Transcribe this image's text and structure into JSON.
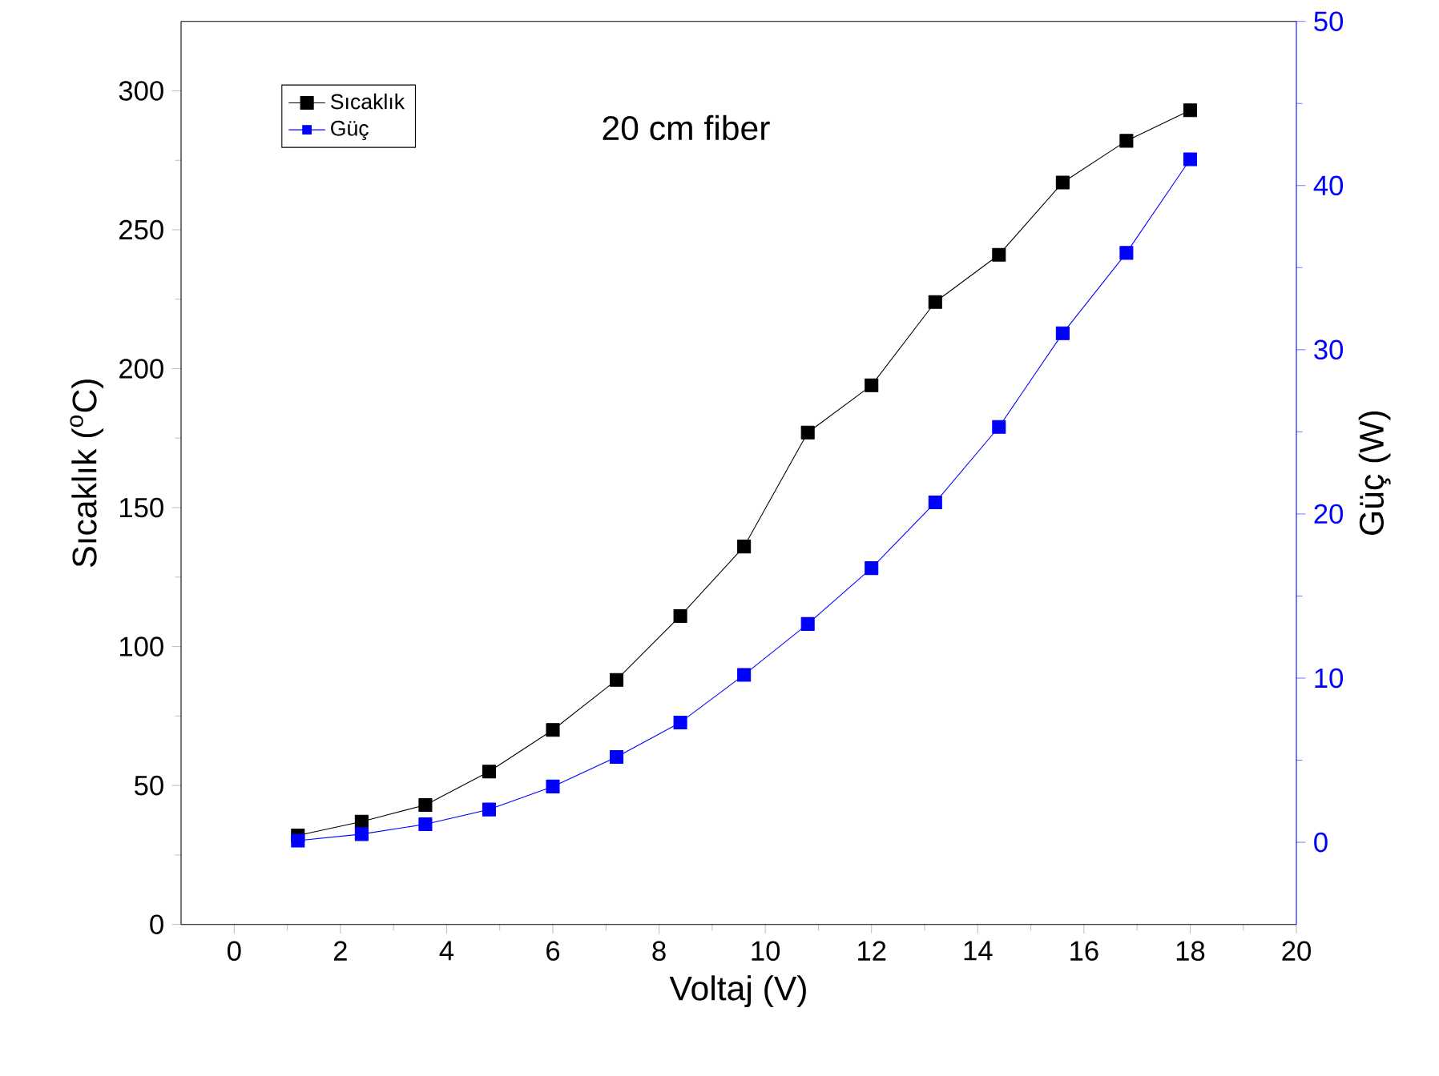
{
  "chart_data": {
    "type": "line",
    "xlabel": "Voltaj (V)",
    "ylabel": "Sıcaklık ($^{o}$C)",
    "y2label": "Güç (W)",
    "x": [
      1.2,
      2.4,
      3.6,
      4.8,
      6.0,
      7.2,
      8.4,
      9.6,
      10.8,
      12.0,
      13.2,
      14.4,
      15.6,
      16.8,
      18.0
    ],
    "series": [
      {
        "name": "Sıcaklık",
        "color": "#000000",
        "values": [
          32,
          37,
          43,
          55,
          70,
          88,
          111,
          136,
          177,
          194,
          224,
          241,
          267,
          282,
          293
        ]
      },
      {
        "name": "Güç",
        "color": "#0000ff",
        "axis": "y2",
        "values": [
          0.1,
          0.5,
          1.1,
          2.0,
          3.4,
          5.2,
          7.3,
          10.2,
          13.3,
          16.7,
          20.7,
          25.3,
          31.0,
          35.9,
          41.6
        ]
      }
    ],
    "xlim": [
      -1,
      20
    ],
    "xticks": [
      0,
      2,
      4,
      6,
      8,
      10,
      12,
      14,
      16,
      18,
      20
    ],
    "ylim": [
      0,
      325
    ],
    "yticks": [
      0,
      50,
      100,
      150,
      200,
      250,
      300
    ],
    "y2lim": [
      -5,
      50
    ],
    "y2ticks": [
      0,
      10,
      20,
      30,
      40,
      50
    ],
    "legend": "top left",
    "marker": "square",
    "annotations": [
      "20 cm fiber"
    ]
  }
}
